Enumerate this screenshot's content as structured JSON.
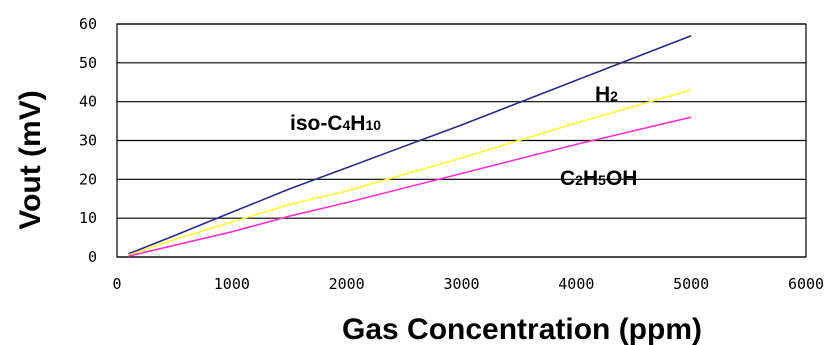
{
  "chart_data": {
    "type": "line",
    "xlabel": "Gas Concentration (ppm)",
    "ylabel": "Vout (mV)",
    "xlim": [
      0,
      6000
    ],
    "ylim": [
      0,
      60
    ],
    "x_ticks": [
      "0",
      "1000",
      "2000",
      "3000",
      "4000",
      "5000",
      "6000"
    ],
    "y_ticks": [
      "0",
      "10",
      "20",
      "30",
      "40",
      "50",
      "60"
    ],
    "grid": "horizontal",
    "legend": "inline labels",
    "series": [
      {
        "name": "iso-C4H10",
        "color": "#2a2a8a",
        "x": [
          100,
          500,
          1000,
          1500,
          2000,
          3000,
          4000,
          5000
        ],
        "y": [
          0.8,
          5.5,
          11.5,
          17.5,
          23,
          34,
          45.5,
          57
        ]
      },
      {
        "name": "H2",
        "color": "#ffff33",
        "x": [
          100,
          500,
          1000,
          1500,
          2000,
          3000,
          4000,
          5000
        ],
        "y": [
          0.5,
          4.5,
          9,
          13.5,
          17,
          25.5,
          34.5,
          43
        ]
      },
      {
        "name": "C2H5OH",
        "color": "#ff33cc",
        "x": [
          100,
          500,
          1000,
          1500,
          2000,
          3000,
          4000,
          5000
        ],
        "y": [
          0.2,
          3,
          6.5,
          10.5,
          14,
          21.5,
          29,
          36
        ]
      }
    ]
  }
}
